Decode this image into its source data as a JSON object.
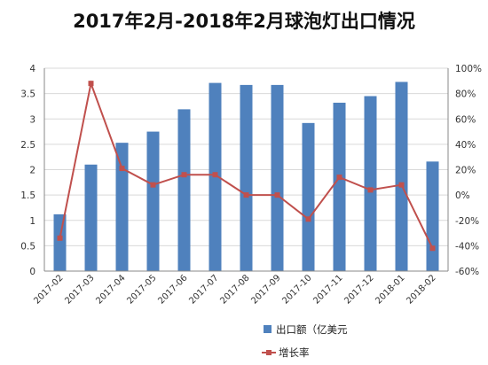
{
  "chart_data": {
    "type": "bar",
    "title": "2017年2月-2018年2月球泡灯出口情况",
    "categories": [
      "2017-02",
      "2017-03",
      "2017-04",
      "2017-05",
      "2017-06",
      "2017-07",
      "2017-08",
      "2017-09",
      "2017-10",
      "2017-11",
      "2017-12",
      "2018-01",
      "2018-02"
    ],
    "series": [
      {
        "name": "出口额（亿美元",
        "kind": "bar",
        "axis": "left",
        "color": "#4f81bd",
        "values": [
          1.12,
          2.1,
          2.53,
          2.75,
          3.19,
          3.71,
          3.67,
          3.67,
          2.92,
          3.32,
          3.45,
          3.73,
          2.16
        ]
      },
      {
        "name": "增长率",
        "kind": "line",
        "axis": "right",
        "unit": "%",
        "color": "#c0504d",
        "values": [
          -34,
          88,
          21,
          8,
          16,
          16,
          0,
          0,
          -19,
          14,
          4,
          8,
          -42
        ]
      }
    ],
    "ylim_left": [
      0,
      4
    ],
    "yticks_left": [
      "0",
      "0.5",
      "1",
      "1.5",
      "2",
      "2.5",
      "3",
      "3.5",
      "4"
    ],
    "ylim_right": [
      -60,
      100
    ],
    "yticks_right": [
      "-60%",
      "-40%",
      "-20%",
      "0%",
      "20%",
      "40%",
      "60%",
      "80%",
      "100%"
    ],
    "grid": true,
    "legend_position": "bottom-center"
  }
}
